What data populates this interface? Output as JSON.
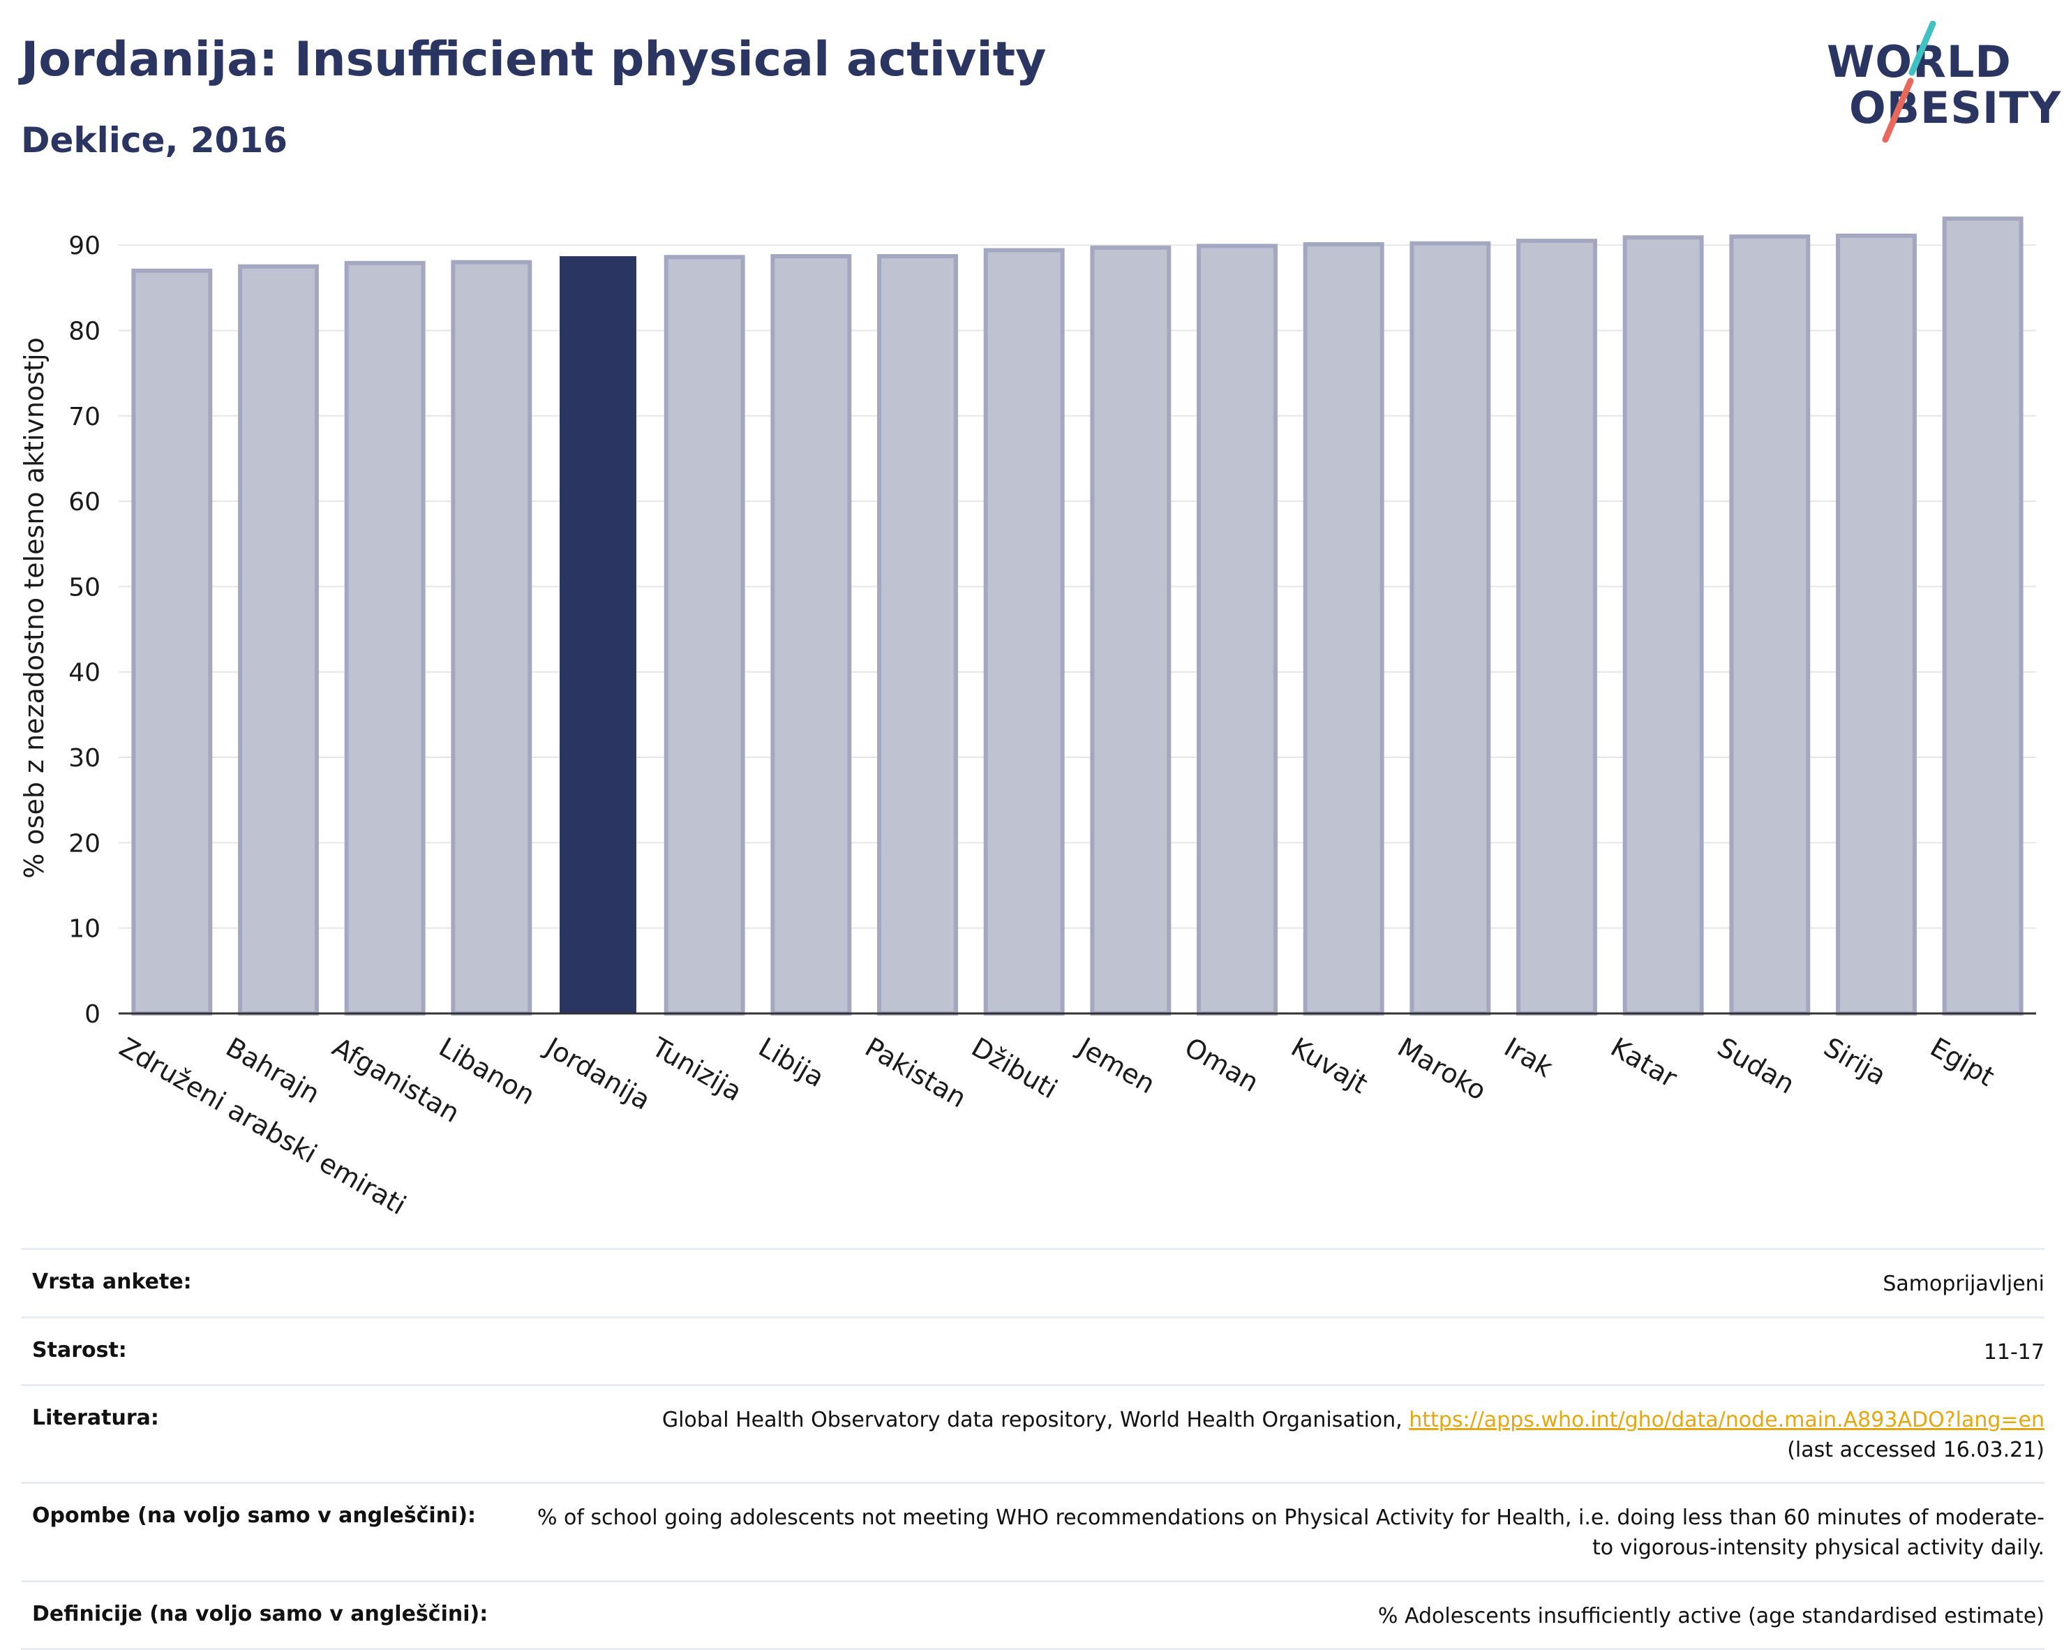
{
  "header": {
    "title": "Jordanija: Insufficient physical activity",
    "subtitle": "Deklice, 2016"
  },
  "logo": {
    "line1": "WORLD",
    "line2": "OBESITY",
    "brand_color": "#2b3562",
    "accent_teal": "#3ec1c0",
    "accent_red": "#e8695c"
  },
  "chart_data": {
    "type": "bar",
    "ylabel": "% oseb z nezadostno telesno aktivnostjo",
    "xlabel": "",
    "ylim": [
      0,
      95
    ],
    "yticks": [
      0,
      10,
      20,
      30,
      40,
      50,
      60,
      70,
      80,
      90
    ],
    "grid": true,
    "categories": [
      "Združeni arabski emirati",
      "Bahrajn",
      "Afganistan",
      "Libanon",
      "Jordanija",
      "Tunizija",
      "Libija",
      "Pakistan",
      "Džibuti",
      "Jemen",
      "Oman",
      "Kuvajt",
      "Maroko",
      "Irak",
      "Katar",
      "Sudan",
      "Sirija",
      "Egipt"
    ],
    "values": [
      87.0,
      87.5,
      87.9,
      88.0,
      88.7,
      88.6,
      88.7,
      88.7,
      89.4,
      89.7,
      89.9,
      90.1,
      90.2,
      90.5,
      90.9,
      91.0,
      91.1,
      93.1
    ],
    "highlight": "Jordanija",
    "colors": {
      "bar": "#bfc2d0",
      "bar_edge": "#a3a8c0",
      "highlight": "#2b3562"
    }
  },
  "info": [
    {
      "label": "Vrsta ankete:",
      "value": "Samoprijavljeni"
    },
    {
      "label": "Starost:",
      "value": "11-17"
    },
    {
      "label": "Literatura:",
      "value": "Global Health Observatory data repository, World Health Organisation,",
      "link": "https://apps.who.int/gho/data/node.main.A893ADO?lang=en",
      "value2": "(last accessed 16.03.21)"
    },
    {
      "label": "Opombe (na voljo samo v angleščini):",
      "value": "% of school going adolescents not meeting WHO recommendations on Physical Activity for Health, i.e. doing less than 60 minutes of moderate- to vigorous-intensity physical activity daily."
    },
    {
      "label": "Definicije (na voljo samo v angleščini):",
      "value": "% Adolescents insufficiently active (age standardised estimate)"
    }
  ]
}
